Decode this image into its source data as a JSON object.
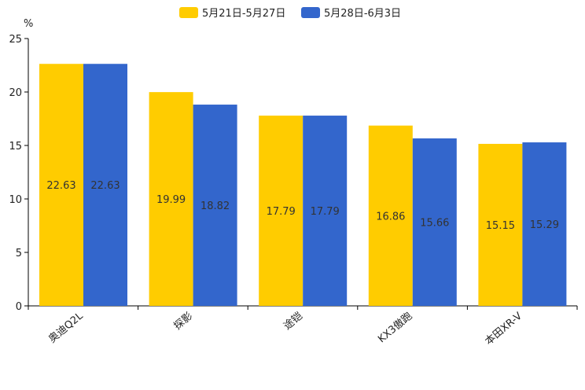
{
  "chart_data": {
    "type": "bar",
    "title": "",
    "xlabel": "",
    "ylabel": "",
    "unit_label": "%",
    "categories": [
      "奥迪Q2L",
      "探影",
      "途铠",
      "KX3傲跑",
      "本田XR-V"
    ],
    "series": [
      {
        "name": "5月21日-5月27日",
        "color": "#FFCC00",
        "values": [
          22.63,
          19.99,
          17.79,
          16.86,
          15.15
        ]
      },
      {
        "name": "5月28日-6月3日",
        "color": "#3366CC",
        "values": [
          22.63,
          18.82,
          17.79,
          15.66,
          15.29
        ]
      }
    ],
    "ylim": [
      0,
      25
    ],
    "yticks": [
      0,
      5,
      10,
      15,
      20,
      25
    ],
    "grid": false,
    "legend_position": "top-center"
  }
}
